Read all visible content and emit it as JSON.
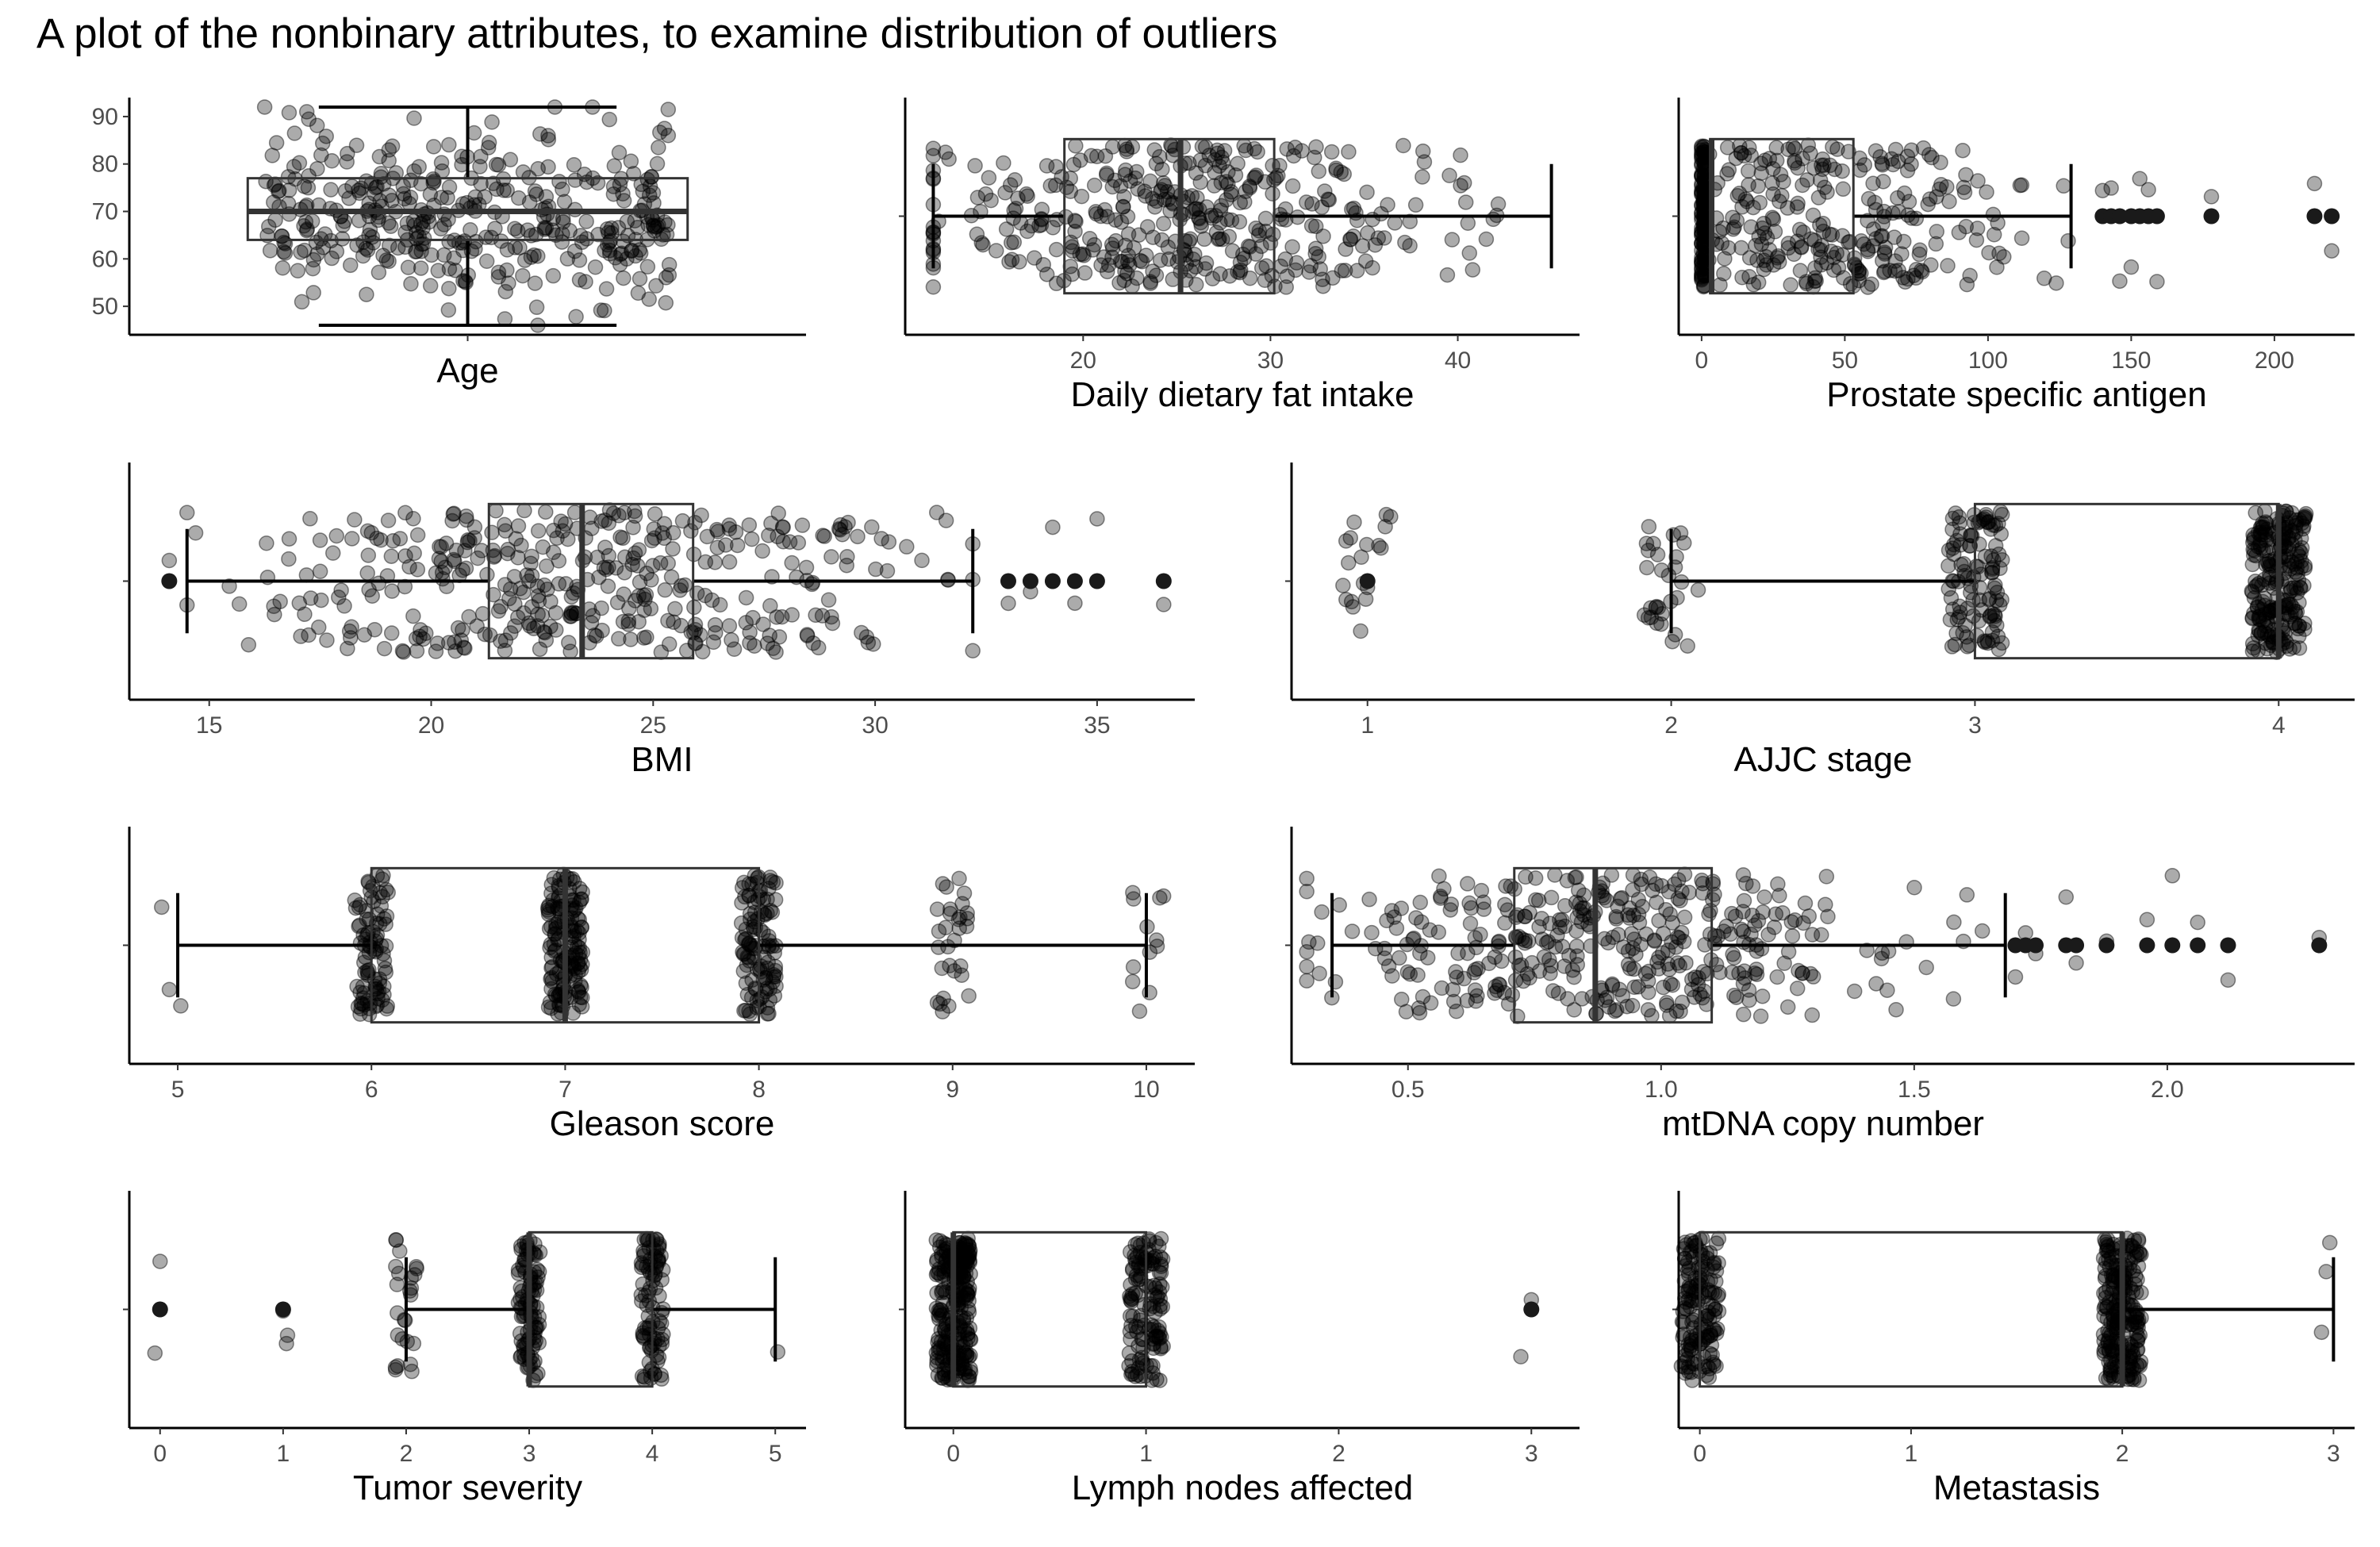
{
  "title": "A plot of the nonbinary attributes, to examine distribution of outliers",
  "chart_data": [
    {
      "type": "box",
      "orientation": "vertical",
      "xlabel": "Age",
      "ylabel": "",
      "range": [
        44,
        94
      ],
      "ticks": [
        50,
        60,
        70,
        80,
        90
      ],
      "box": {
        "q1": 64,
        "median": 70,
        "q3": 77,
        "whisker_low": 46,
        "whisker_high": 92
      },
      "points": {
        "n": 400,
        "center": 70,
        "sd": 9,
        "spread": 0.3,
        "lo": 46,
        "hi": 92,
        "seed": 11
      },
      "outliers": []
    },
    {
      "type": "box",
      "orientation": "horizontal",
      "xlabel": "Daily dietary fat intake",
      "ylabel": "",
      "range": [
        10.5,
        46.5
      ],
      "ticks": [
        20,
        30,
        40
      ],
      "box": {
        "q1": 19,
        "median": 25.2,
        "q3": 30.2,
        "whisker_low": 12,
        "whisker_high": 45
      },
      "points": {
        "n": 400,
        "center": 25,
        "sd": 7,
        "spread": 0.3,
        "lo": 12,
        "hi": 45,
        "seed": 23
      },
      "outliers": []
    },
    {
      "type": "box",
      "orientation": "horizontal",
      "xlabel": "Prostate specific antigen",
      "ylabel": "",
      "range": [
        -8,
        228
      ],
      "ticks": [
        0,
        50,
        100,
        150,
        200
      ],
      "box": {
        "q1": 3,
        "median": 3.5,
        "q3": 53,
        "whisker_low": 0,
        "whisker_high": 129
      },
      "points": {
        "n": 320,
        "center": 40,
        "sd": 35,
        "spread": 0.3,
        "lo": 0,
        "hi": 128,
        "seed": 37,
        "cluster": {
          "at": 1,
          "n": 90
        }
      },
      "outliers": [
        140,
        143,
        146,
        150,
        153,
        156,
        159,
        178,
        214,
        220
      ]
    },
    {
      "type": "box",
      "orientation": "horizontal",
      "xlabel": "BMI",
      "ylabel": "",
      "range": [
        13.2,
        37.2
      ],
      "ticks": [
        15,
        20,
        25,
        30,
        35
      ],
      "box": {
        "q1": 21.3,
        "median": 23.4,
        "q3": 25.9,
        "whisker_low": 14.5,
        "whisker_high": 32.2
      },
      "points": {
        "n": 400,
        "center": 23.5,
        "sd": 3.8,
        "spread": 0.3,
        "lo": 14.5,
        "hi": 32.2,
        "seed": 41
      },
      "outliers": [
        14.1,
        33,
        33.5,
        34,
        34.5,
        35,
        36.5
      ]
    },
    {
      "type": "box",
      "orientation": "horizontal",
      "xlabel": "AJJC stage",
      "ylabel": "",
      "range": [
        0.75,
        4.25
      ],
      "ticks": [
        1,
        2,
        3,
        4
      ],
      "box": {
        "q1": 3,
        "median": 4,
        "q3": 4,
        "whisker_low": 2,
        "whisker_high": 4
      },
      "points": {
        "groups": [
          {
            "at": 1,
            "n": 18
          },
          {
            "at": 2,
            "n": 30
          },
          {
            "at": 3,
            "n": 110
          },
          {
            "at": 4,
            "n": 240
          }
        ],
        "jitter": 0.09,
        "spread": 0.3,
        "seed": 53
      },
      "outliers": [
        1
      ]
    },
    {
      "type": "box",
      "orientation": "horizontal",
      "xlabel": "Gleason score",
      "ylabel": "",
      "range": [
        4.75,
        10.25
      ],
      "ticks": [
        5,
        6,
        7,
        8,
        9,
        10
      ],
      "box": {
        "q1": 6,
        "median": 7,
        "q3": 8,
        "whisker_low": 5,
        "whisker_high": 10
      },
      "points": {
        "groups": [
          {
            "at": 5,
            "n": 3
          },
          {
            "at": 6,
            "n": 90
          },
          {
            "at": 7,
            "n": 150
          },
          {
            "at": 8,
            "n": 110
          },
          {
            "at": 9,
            "n": 30
          },
          {
            "at": 10,
            "n": 12
          }
        ],
        "jitter": 0.09,
        "spread": 0.3,
        "seed": 61
      },
      "outliers": []
    },
    {
      "type": "box",
      "orientation": "horizontal",
      "xlabel": "mtDNA copy number",
      "ylabel": "",
      "range": [
        0.27,
        2.37
      ],
      "ticks": [
        0.5,
        1.0,
        1.5,
        2.0
      ],
      "box": {
        "q1": 0.71,
        "median": 0.87,
        "q3": 1.1,
        "whisker_low": 0.35,
        "whisker_high": 1.68
      },
      "points": {
        "n": 400,
        "center": 0.9,
        "sd": 0.28,
        "spread": 0.3,
        "lo": 0.3,
        "hi": 1.68,
        "seed": 73
      },
      "outliers": [
        1.7,
        1.72,
        1.74,
        1.8,
        1.82,
        1.88,
        1.96,
        2.01,
        2.06,
        2.12,
        2.3
      ]
    },
    {
      "type": "box",
      "orientation": "horizontal",
      "xlabel": "Tumor severity",
      "ylabel": "",
      "range": [
        -0.25,
        5.25
      ],
      "ticks": [
        0,
        1,
        2,
        3,
        4,
        5
      ],
      "box": {
        "q1": 3,
        "median": 3,
        "q3": 4,
        "whisker_low": 2,
        "whisker_high": 5
      },
      "points": {
        "groups": [
          {
            "at": 0,
            "n": 1
          },
          {
            "at": 1,
            "n": 2
          },
          {
            "at": 2,
            "n": 25
          },
          {
            "at": 3,
            "n": 100
          },
          {
            "at": 4,
            "n": 90
          },
          {
            "at": 5,
            "n": 1
          }
        ],
        "jitter": 0.09,
        "spread": 0.3,
        "seed": 83
      },
      "outliers": [
        0,
        1
      ]
    },
    {
      "type": "box",
      "orientation": "horizontal",
      "xlabel": "Lymph nodes affected",
      "ylabel": "",
      "range": [
        -0.25,
        3.25
      ],
      "ticks": [
        0,
        1,
        2,
        3
      ],
      "box": {
        "q1": 0,
        "median": 0,
        "q3": 1,
        "whisker_low": 0,
        "whisker_high": 1
      },
      "points": {
        "groups": [
          {
            "at": 0,
            "n": 250
          },
          {
            "at": 1,
            "n": 130
          },
          {
            "at": 3,
            "n": 1
          }
        ],
        "jitter": 0.09,
        "spread": 0.3,
        "seed": 97
      },
      "outliers": [
        3
      ]
    },
    {
      "type": "box",
      "orientation": "horizontal",
      "xlabel": "Metastasis",
      "ylabel": "",
      "range": [
        -0.1,
        3.1
      ],
      "ticks": [
        0,
        1,
        2,
        3
      ],
      "box": {
        "q1": 0,
        "median": 2,
        "q3": 2,
        "whisker_low": 0,
        "whisker_high": 3
      },
      "points": {
        "groups": [
          {
            "at": 0,
            "n": 150
          },
          {
            "at": 2,
            "n": 230
          },
          {
            "at": 3,
            "n": 3
          }
        ],
        "jitter": 0.09,
        "spread": 0.3,
        "seed": 101
      },
      "outliers": []
    }
  ]
}
